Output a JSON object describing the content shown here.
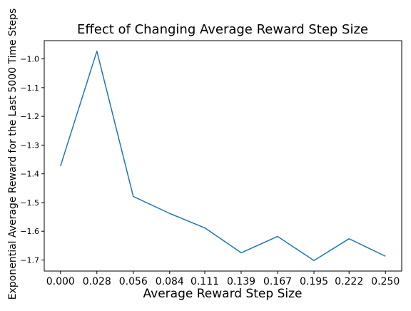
{
  "chart_data": {
    "type": "line",
    "title": "Effect of Changing Average Reward Step Size",
    "xlabel": "Average Reward Step Size",
    "ylabel": "Exponential Average Reward for the Last 5000 Time Steps",
    "x": [
      0.0,
      0.028,
      0.056,
      0.084,
      0.111,
      0.139,
      0.167,
      0.195,
      0.222,
      0.25
    ],
    "x_tick_labels": [
      "0.000",
      "0.028",
      "0.056",
      "0.084",
      "0.111",
      "0.139",
      "0.167",
      "0.195",
      "0.222",
      "0.250"
    ],
    "y_ticks": [
      -1.7,
      -1.6,
      -1.5,
      -1.4,
      -1.3,
      -1.2,
      -1.1,
      -1.0
    ],
    "y_tick_labels": [
      "−1.7",
      "−1.6",
      "−1.5",
      "−1.4",
      "−1.3",
      "−1.2",
      "−1.1",
      "−1.0"
    ],
    "series": [
      {
        "values": [
          -1.373,
          -0.973,
          -1.479,
          -1.538,
          -1.588,
          -1.675,
          -1.618,
          -1.702,
          -1.626,
          -1.687
        ],
        "color": "#1f77b4"
      }
    ],
    "xlim": [
      -0.0125,
      0.2625
    ],
    "ylim": [
      -1.7385,
      -0.9365
    ],
    "grid": false,
    "legend": "none"
  }
}
